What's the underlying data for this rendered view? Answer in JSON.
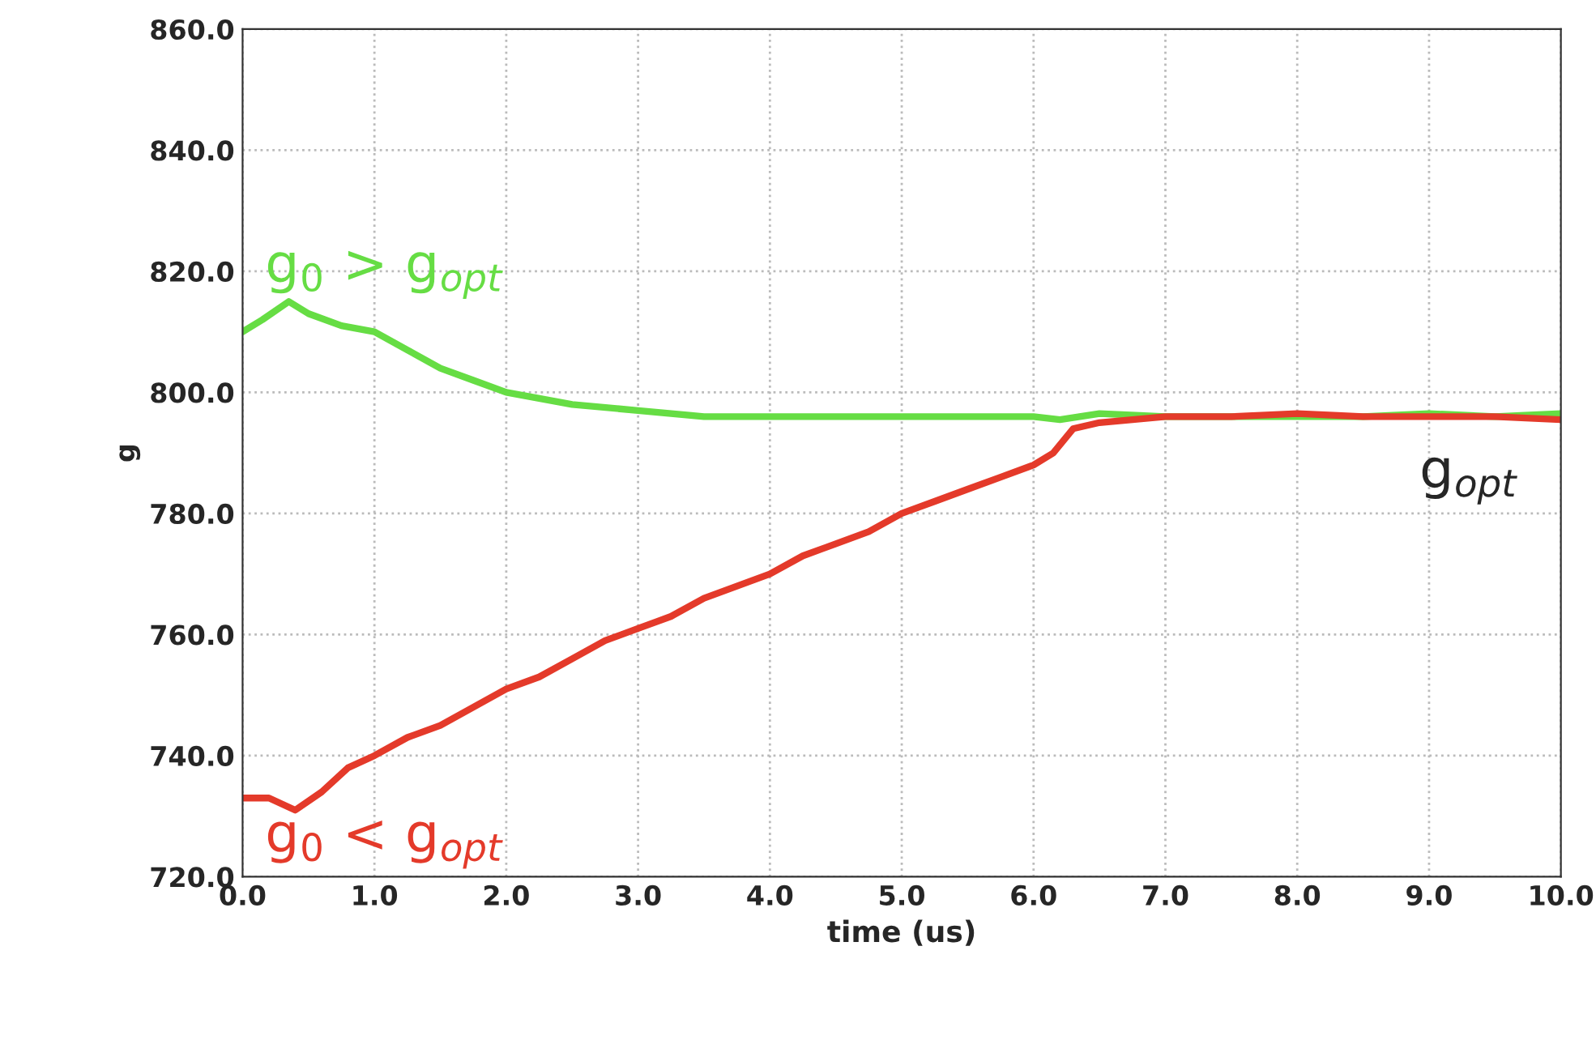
{
  "chart_data": {
    "type": "line",
    "xlabel": "time (us)",
    "ylabel": "g",
    "xlim": [
      0,
      10
    ],
    "ylim": [
      720,
      860
    ],
    "xticks": [
      {
        "value": 0,
        "label": "0.0"
      },
      {
        "value": 1,
        "label": "1.0"
      },
      {
        "value": 2,
        "label": "2.0"
      },
      {
        "value": 3,
        "label": "3.0"
      },
      {
        "value": 4,
        "label": "4.0"
      },
      {
        "value": 5,
        "label": "5.0"
      },
      {
        "value": 6,
        "label": "6.0"
      },
      {
        "value": 7,
        "label": "7.0"
      },
      {
        "value": 8,
        "label": "8.0"
      },
      {
        "value": 9,
        "label": "9.0"
      },
      {
        "value": 10,
        "label": "10.0"
      }
    ],
    "yticks": [
      {
        "value": 720,
        "label": "720.0"
      },
      {
        "value": 740,
        "label": "740.0"
      },
      {
        "value": 760,
        "label": "760.0"
      },
      {
        "value": 780,
        "label": "780.0"
      },
      {
        "value": 800,
        "label": "800.0"
      },
      {
        "value": 820,
        "label": "820.0"
      },
      {
        "value": 840,
        "label": "840.0"
      },
      {
        "value": 860,
        "label": "860.0"
      }
    ],
    "grid": true,
    "marker": "none",
    "line_style": "solid",
    "series": [
      {
        "name": "g$_{0}$ > g$_{opt}$",
        "color": "#66dd44",
        "x": [
          0,
          0.15,
          0.35,
          0.5,
          0.75,
          1.0,
          1.25,
          1.5,
          1.75,
          2.0,
          2.25,
          2.5,
          3.0,
          3.5,
          4.0,
          4.5,
          5.0,
          5.5,
          6.0,
          6.2,
          6.5,
          7.0,
          7.5,
          8.0,
          8.5,
          9.0,
          9.5,
          10.0
        ],
        "values": [
          810,
          812,
          815,
          813,
          811,
          810,
          807,
          804,
          802,
          800,
          799,
          798,
          797,
          796,
          796,
          796,
          796,
          796,
          796,
          795.5,
          796.5,
          796,
          796,
          796,
          796,
          796.5,
          796,
          796.5
        ]
      },
      {
        "name": "g$_{0}$ < g$_{opt}$",
        "color": "#e43a2a",
        "x": [
          0,
          0.2,
          0.4,
          0.6,
          0.8,
          1.0,
          1.25,
          1.5,
          1.75,
          2.0,
          2.25,
          2.5,
          2.75,
          3.0,
          3.25,
          3.5,
          3.75,
          4.0,
          4.25,
          4.5,
          4.75,
          5.0,
          5.25,
          5.5,
          5.75,
          6.0,
          6.15,
          6.3,
          6.5,
          6.75,
          7.0,
          7.5,
          8.0,
          8.5,
          9.0,
          9.5,
          10.0
        ],
        "values": [
          733,
          733,
          731,
          734,
          738,
          740,
          743,
          745,
          748,
          751,
          753,
          756,
          759,
          761,
          763,
          766,
          768,
          770,
          773,
          775,
          777,
          780,
          782,
          784,
          786,
          788,
          790,
          794,
          795,
          795.5,
          796,
          796,
          796.5,
          796,
          796,
          796,
          795.5
        ]
      }
    ],
    "annotations": [
      "g$_{opt}$"
    ]
  }
}
